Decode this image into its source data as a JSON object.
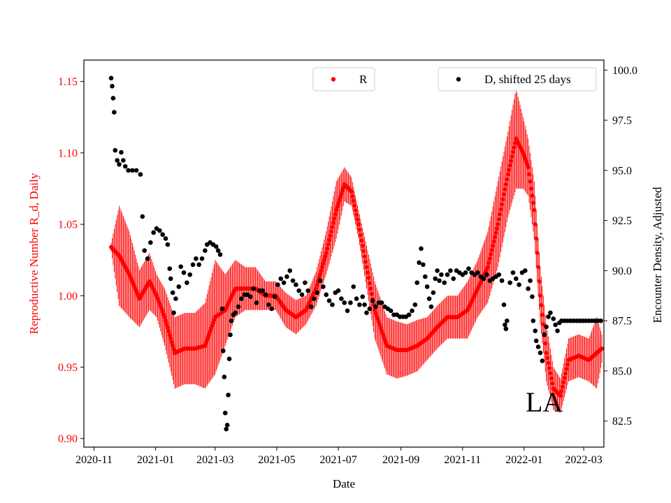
{
  "chart_data": {
    "type": "scatter",
    "title": "",
    "xlabel": "Date",
    "ylabel_left": "Reproductive Number R_d, Daily",
    "ylabel_right": "Encounter Density, Adjusted",
    "annotation": "LA",
    "colors": {
      "r": "#ff0000",
      "d": "#000000",
      "axis": "#000000"
    },
    "x_range_days": [
      -10,
      505
    ],
    "x_origin_date": "2020-11-01",
    "x_ticks": [
      {
        "day": 0,
        "label": "2020-11"
      },
      {
        "day": 61,
        "label": "2021-01"
      },
      {
        "day": 120,
        "label": "2021-03"
      },
      {
        "day": 181,
        "label": "2021-05"
      },
      {
        "day": 242,
        "label": "2021-07"
      },
      {
        "day": 304,
        "label": "2021-09"
      },
      {
        "day": 365,
        "label": "2021-11"
      },
      {
        "day": 426,
        "label": "2022-01"
      },
      {
        "day": 485,
        "label": "2022-03"
      }
    ],
    "y_left": {
      "lim": [
        0.894,
        1.165
      ],
      "ticks": [
        0.9,
        0.95,
        1.0,
        1.05,
        1.1,
        1.15
      ],
      "tick_labels": [
        "0.90",
        "0.95",
        "1.00",
        "1.05",
        "1.10",
        "1.15"
      ]
    },
    "y_right": {
      "lim": [
        81.2,
        100.5
      ],
      "ticks": [
        82.5,
        85.0,
        87.5,
        90.0,
        92.5,
        95.0,
        97.5,
        100.0
      ],
      "tick_labels": [
        "82.5",
        "85.0",
        "87.5",
        "90.0",
        "92.5",
        "95.0",
        "97.5",
        "100.0"
      ]
    },
    "series": [
      {
        "name": "R",
        "axis": "left",
        "with_error_bars": true,
        "points": [
          [
            17,
            1.034,
            0.003
          ],
          [
            25,
            1.028,
            0.035
          ],
          [
            35,
            1.015,
            0.03
          ],
          [
            45,
            0.998,
            0.02
          ],
          [
            55,
            1.01,
            0.02
          ],
          [
            62,
            1.0,
            0.015
          ],
          [
            70,
            0.985,
            0.02
          ],
          [
            80,
            0.96,
            0.025
          ],
          [
            90,
            0.963,
            0.025
          ],
          [
            100,
            0.963,
            0.025
          ],
          [
            110,
            0.965,
            0.03
          ],
          [
            120,
            0.985,
            0.04
          ],
          [
            130,
            0.99,
            0.025
          ],
          [
            140,
            1.005,
            0.02
          ],
          [
            150,
            1.005,
            0.015
          ],
          [
            160,
            1.005,
            0.015
          ],
          [
            170,
            1.0,
            0.01
          ],
          [
            180,
            1.0,
            0.01
          ],
          [
            190,
            0.99,
            0.012
          ],
          [
            200,
            0.985,
            0.012
          ],
          [
            210,
            0.99,
            0.01
          ],
          [
            220,
            1.005,
            0.012
          ],
          [
            230,
            1.03,
            0.015
          ],
          [
            240,
            1.06,
            0.02
          ],
          [
            248,
            1.078,
            0.012
          ],
          [
            255,
            1.073,
            0.01
          ],
          [
            262,
            1.05,
            0.01
          ],
          [
            270,
            1.02,
            0.015
          ],
          [
            278,
            0.99,
            0.02
          ],
          [
            290,
            0.965,
            0.02
          ],
          [
            300,
            0.962,
            0.02
          ],
          [
            310,
            0.962,
            0.018
          ],
          [
            320,
            0.965,
            0.018
          ],
          [
            330,
            0.97,
            0.015
          ],
          [
            340,
            0.978,
            0.015
          ],
          [
            350,
            0.985,
            0.015
          ],
          [
            360,
            0.985,
            0.015
          ],
          [
            370,
            0.99,
            0.02
          ],
          [
            380,
            1.005,
            0.02
          ],
          [
            390,
            1.02,
            0.025
          ],
          [
            400,
            1.05,
            0.03
          ],
          [
            410,
            1.085,
            0.03
          ],
          [
            418,
            1.11,
            0.035
          ],
          [
            425,
            1.1,
            0.025
          ],
          [
            430,
            1.09,
            0.02
          ],
          [
            436,
            1.06,
            0.02
          ],
          [
            442,
            1.0,
            0.02
          ],
          [
            448,
            0.96,
            0.02
          ],
          [
            455,
            0.935,
            0.015
          ],
          [
            462,
            0.93,
            0.012
          ],
          [
            470,
            0.955,
            0.015
          ],
          [
            480,
            0.958,
            0.015
          ],
          [
            490,
            0.955,
            0.015
          ],
          [
            498,
            0.96,
            0.025
          ],
          [
            503,
            0.963,
            0.01
          ]
        ]
      },
      {
        "name": "D, shifted 25 days",
        "axis": "right",
        "with_error_bars": false,
        "points": [
          [
            17,
            99.6
          ],
          [
            18,
            99.2
          ],
          [
            19,
            98.6
          ],
          [
            20,
            97.9
          ],
          [
            21,
            96.0
          ],
          [
            23,
            95.5
          ],
          [
            25,
            95.3
          ],
          [
            27,
            95.9
          ],
          [
            29,
            95.5
          ],
          [
            31,
            95.2
          ],
          [
            34,
            95.0
          ],
          [
            38,
            95.0
          ],
          [
            42,
            95.0
          ],
          [
            46,
            94.8
          ],
          [
            48,
            92.7
          ],
          [
            50,
            91.0
          ],
          [
            53,
            90.6
          ],
          [
            56,
            91.4
          ],
          [
            59,
            91.9
          ],
          [
            62,
            92.1
          ],
          [
            65,
            92.0
          ],
          [
            68,
            91.8
          ],
          [
            71,
            91.6
          ],
          [
            73,
            91.3
          ],
          [
            75,
            90.1
          ],
          [
            76,
            89.6
          ],
          [
            78,
            88.9
          ],
          [
            79,
            87.9
          ],
          [
            81,
            88.6
          ],
          [
            84,
            89.2
          ],
          [
            86,
            90.2
          ],
          [
            89,
            89.9
          ],
          [
            92,
            89.4
          ],
          [
            95,
            89.8
          ],
          [
            98,
            90.3
          ],
          [
            101,
            90.6
          ],
          [
            104,
            90.3
          ],
          [
            107,
            90.6
          ],
          [
            110,
            91.0
          ],
          [
            112,
            91.3
          ],
          [
            115,
            91.4
          ],
          [
            118,
            91.3
          ],
          [
            121,
            91.2
          ],
          [
            123,
            91.0
          ],
          [
            125,
            90.8
          ],
          [
            127,
            88.1
          ],
          [
            128,
            86.0
          ],
          [
            129,
            84.7
          ],
          [
            130,
            82.9
          ],
          [
            131,
            82.1
          ],
          [
            132,
            82.3
          ],
          [
            133,
            83.8
          ],
          [
            134,
            85.6
          ],
          [
            135,
            86.8
          ],
          [
            136,
            87.5
          ],
          [
            138,
            87.8
          ],
          [
            140,
            87.9
          ],
          [
            143,
            88.2
          ],
          [
            146,
            88.6
          ],
          [
            149,
            88.8
          ],
          [
            152,
            88.8
          ],
          [
            155,
            88.7
          ],
          [
            158,
            89.1
          ],
          [
            161,
            88.4
          ],
          [
            164,
            89.0
          ],
          [
            167,
            89.0
          ],
          [
            170,
            88.8
          ],
          [
            173,
            88.3
          ],
          [
            176,
            88.1
          ],
          [
            179,
            88.7
          ],
          [
            182,
            89.3
          ],
          [
            185,
            89.6
          ],
          [
            188,
            89.4
          ],
          [
            191,
            89.7
          ],
          [
            194,
            90.0
          ],
          [
            197,
            89.5
          ],
          [
            200,
            89.3
          ],
          [
            203,
            89.0
          ],
          [
            206,
            88.8
          ],
          [
            209,
            89.4
          ],
          [
            212,
            89.0
          ],
          [
            215,
            88.2
          ],
          [
            218,
            88.6
          ],
          [
            221,
            88.9
          ],
          [
            224,
            89.5
          ],
          [
            227,
            89.2
          ],
          [
            230,
            88.8
          ],
          [
            233,
            88.5
          ],
          [
            236,
            88.3
          ],
          [
            239,
            88.9
          ],
          [
            242,
            89.0
          ],
          [
            245,
            88.6
          ],
          [
            248,
            88.4
          ],
          [
            251,
            88.0
          ],
          [
            254,
            88.4
          ],
          [
            257,
            89.2
          ],
          [
            260,
            88.6
          ],
          [
            263,
            88.3
          ],
          [
            266,
            88.7
          ],
          [
            268,
            88.3
          ],
          [
            270,
            87.9
          ],
          [
            273,
            88.1
          ],
          [
            276,
            88.5
          ],
          [
            279,
            88.2
          ],
          [
            282,
            88.4
          ],
          [
            285,
            88.4
          ],
          [
            288,
            88.2
          ],
          [
            291,
            88.1
          ],
          [
            294,
            88.0
          ],
          [
            297,
            87.8
          ],
          [
            300,
            87.8
          ],
          [
            303,
            87.7
          ],
          [
            306,
            87.7
          ],
          [
            309,
            87.7
          ],
          [
            312,
            87.8
          ],
          [
            315,
            88.0
          ],
          [
            318,
            88.3
          ],
          [
            320,
            89.4
          ],
          [
            322,
            90.4
          ],
          [
            324,
            91.1
          ],
          [
            326,
            90.3
          ],
          [
            328,
            89.7
          ],
          [
            330,
            89.2
          ],
          [
            332,
            88.6
          ],
          [
            334,
            88.2
          ],
          [
            336,
            88.9
          ],
          [
            338,
            89.6
          ],
          [
            340,
            90.0
          ],
          [
            342,
            89.5
          ],
          [
            344,
            89.8
          ],
          [
            347,
            89.4
          ],
          [
            350,
            89.8
          ],
          [
            353,
            90.0
          ],
          [
            356,
            89.6
          ],
          [
            359,
            90.0
          ],
          [
            362,
            89.9
          ],
          [
            365,
            89.8
          ],
          [
            368,
            89.9
          ],
          [
            371,
            90.1
          ],
          [
            374,
            89.9
          ],
          [
            377,
            89.8
          ],
          [
            380,
            89.9
          ],
          [
            383,
            89.7
          ],
          [
            386,
            89.6
          ],
          [
            389,
            89.8
          ],
          [
            392,
            89.5
          ],
          [
            395,
            89.6
          ],
          [
            398,
            89.7
          ],
          [
            401,
            89.8
          ],
          [
            404,
            89.5
          ],
          [
            406,
            88.3
          ],
          [
            407,
            87.3
          ],
          [
            408,
            87.1
          ],
          [
            409,
            87.5
          ],
          [
            412,
            89.4
          ],
          [
            415,
            89.9
          ],
          [
            418,
            89.6
          ],
          [
            421,
            89.3
          ],
          [
            424,
            89.9
          ],
          [
            427,
            90.0
          ],
          [
            430,
            89.1
          ],
          [
            432,
            89.5
          ],
          [
            434,
            88.7
          ],
          [
            435,
            87.5
          ],
          [
            437,
            87.0
          ],
          [
            438,
            86.5
          ],
          [
            440,
            86.2
          ],
          [
            442,
            85.9
          ],
          [
            444,
            85.5
          ],
          [
            446,
            86.8
          ],
          [
            448,
            87.2
          ],
          [
            450,
            87.7
          ],
          [
            452,
            87.9
          ],
          [
            455,
            87.6
          ],
          [
            457,
            87.3
          ],
          [
            459,
            87.0
          ],
          [
            461,
            87.4
          ],
          [
            463,
            87.5
          ],
          [
            466,
            87.5
          ],
          [
            469,
            87.5
          ],
          [
            472,
            87.5
          ],
          [
            475,
            87.5
          ],
          [
            478,
            87.5
          ],
          [
            481,
            87.5
          ],
          [
            484,
            87.5
          ],
          [
            487,
            87.5
          ],
          [
            490,
            87.5
          ],
          [
            493,
            87.5
          ],
          [
            496,
            87.5
          ],
          [
            499,
            87.5
          ],
          [
            502,
            87.5
          ]
        ]
      }
    ],
    "legend": [
      {
        "label": "R",
        "placement": "top-center"
      },
      {
        "label": "D, shifted 25 days",
        "placement": "top-right"
      }
    ]
  }
}
